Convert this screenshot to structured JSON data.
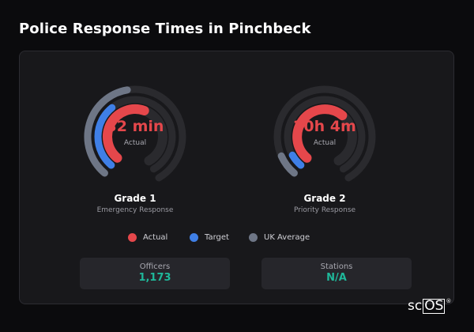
{
  "page": {
    "title": "Police Response Times in Pinchbeck"
  },
  "colors": {
    "actual": "#e5474b",
    "target": "#3f7fe6",
    "uk_average": "#6e7686",
    "track": "#2a2a2e",
    "background": "#0b0b0d",
    "card": "#18181b",
    "stat_value": "#1fb89a"
  },
  "chart_data": {
    "type": "radial-gauge",
    "title": "Police Response Times in Pinchbeck",
    "series_names": [
      "Actual",
      "Target",
      "UK Average"
    ],
    "gauges": [
      {
        "name": "Grade 1",
        "subtitle": "Emergency Response",
        "center_value": "32 min",
        "center_label": "Actual",
        "rings": [
          {
            "series": "UK Average",
            "fraction": 0.45
          },
          {
            "series": "Target",
            "fraction": 0.35
          },
          {
            "series": "Actual",
            "fraction": 0.55
          }
        ]
      },
      {
        "name": "Grade 2",
        "subtitle": "Priority Response",
        "center_value": "20h 4m",
        "center_label": "Actual",
        "rings": [
          {
            "series": "UK Average",
            "fraction": 0.09
          },
          {
            "series": "Target",
            "fraction": 0.07
          },
          {
            "series": "Actual",
            "fraction": 0.62
          }
        ]
      }
    ],
    "legend": {
      "position": "bottom",
      "items": [
        {
          "label": "Actual",
          "color": "#e5474b"
        },
        {
          "label": "Target",
          "color": "#3f7fe6"
        },
        {
          "label": "UK Average",
          "color": "#6e7686"
        }
      ]
    }
  },
  "stats": [
    {
      "label": "Officers",
      "value": "1,173"
    },
    {
      "label": "Stations",
      "value": "N/A"
    }
  ],
  "branding": {
    "logo_prefix": "sc",
    "logo_box": "OS",
    "logo_mark": "®"
  }
}
